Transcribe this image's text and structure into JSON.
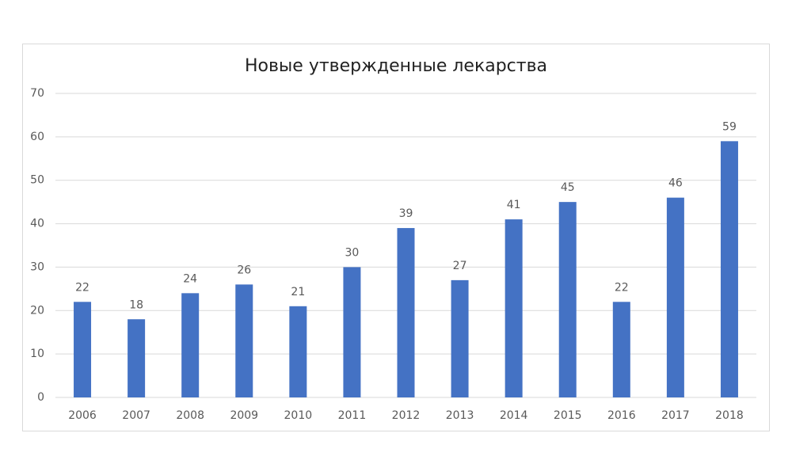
{
  "chart_data": {
    "type": "bar",
    "title": "Новые утвержденные лекарства",
    "categories": [
      "2006",
      "2007",
      "2008",
      "2009",
      "2010",
      "2011",
      "2012",
      "2013",
      "2014",
      "2015",
      "2016",
      "2017",
      "2018"
    ],
    "values": [
      22,
      18,
      24,
      26,
      21,
      30,
      39,
      27,
      41,
      45,
      22,
      46,
      59
    ],
    "color": "#4472c4",
    "ylim": [
      0,
      70
    ],
    "yticks": [
      0,
      10,
      20,
      30,
      40,
      50,
      60,
      70
    ],
    "grid": true
  }
}
